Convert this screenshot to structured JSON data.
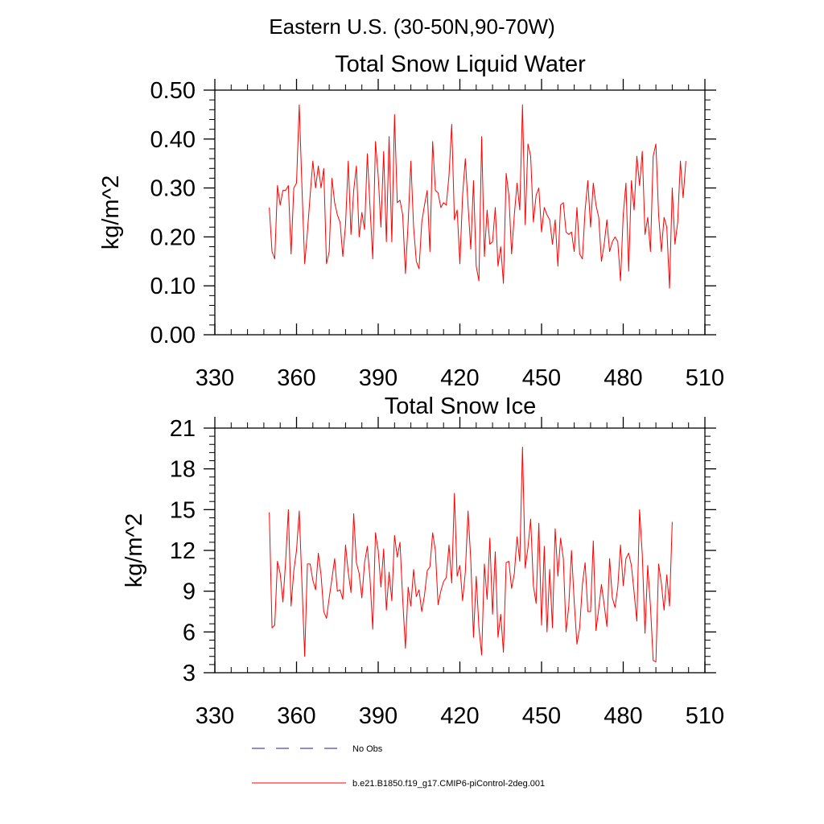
{
  "figure_title": "Eastern U.S. (30-50N,90-70W)",
  "legend": {
    "entries": [
      {
        "label": "No Obs",
        "color": "#1f1f8f",
        "style": "dashed"
      },
      {
        "label": "b.e21.B1850.f19_g17.CMIP6-piControl-2deg.001",
        "color": "#ff0000",
        "style": "solid"
      }
    ]
  },
  "chart_data": [
    {
      "type": "line",
      "title": "Total Snow Liquid Water",
      "xlabel": "",
      "ylabel": "kg/m^2",
      "xlim": [
        330,
        510
      ],
      "ylim": [
        0,
        0.5
      ],
      "xticks": [
        330,
        360,
        390,
        420,
        450,
        480,
        510
      ],
      "xtick_labels": [
        "330",
        "360",
        "390",
        "420",
        "450",
        "480",
        "510"
      ],
      "yticks": [
        0,
        0.1,
        0.2,
        0.3,
        0.4,
        0.5
      ],
      "ytick_labels": [
        "0.00",
        "0.10",
        "0.20",
        "0.30",
        "0.40",
        "0.50"
      ],
      "grid": false,
      "series": [
        {
          "name": "b.e21.B1850.f19_g17.CMIP6-piControl-2deg.001",
          "color": "#ff0000",
          "x_start": 350,
          "x_step": 1,
          "values": [
            0.26,
            0.17,
            0.155,
            0.305,
            0.265,
            0.295,
            0.295,
            0.305,
            0.165,
            0.3,
            0.31,
            0.47,
            0.3,
            0.145,
            0.21,
            0.285,
            0.355,
            0.3,
            0.345,
            0.3,
            0.34,
            0.145,
            0.17,
            0.32,
            0.27,
            0.245,
            0.23,
            0.16,
            0.225,
            0.355,
            0.205,
            0.295,
            0.345,
            0.2,
            0.25,
            0.215,
            0.37,
            0.26,
            0.155,
            0.395,
            0.325,
            0.22,
            0.375,
            0.19,
            0.405,
            0.19,
            0.45,
            0.27,
            0.275,
            0.245,
            0.125,
            0.23,
            0.355,
            0.22,
            0.15,
            0.135,
            0.23,
            0.265,
            0.295,
            0.17,
            0.395,
            0.295,
            0.29,
            0.26,
            0.27,
            0.265,
            0.325,
            0.43,
            0.235,
            0.255,
            0.145,
            0.285,
            0.36,
            0.265,
            0.175,
            0.315,
            0.14,
            0.11,
            0.405,
            0.16,
            0.255,
            0.185,
            0.19,
            0.26,
            0.14,
            0.18,
            0.105,
            0.33,
            0.285,
            0.165,
            0.245,
            0.31,
            0.255,
            0.47,
            0.225,
            0.39,
            0.365,
            0.23,
            0.285,
            0.3,
            0.21,
            0.26,
            0.245,
            0.235,
            0.185,
            0.235,
            0.14,
            0.265,
            0.27,
            0.21,
            0.205,
            0.21,
            0.17,
            0.26,
            0.165,
            0.155,
            0.255,
            0.315,
            0.22,
            0.31,
            0.265,
            0.24,
            0.15,
            0.185,
            0.235,
            0.17,
            0.19,
            0.2,
            0.19,
            0.11,
            0.245,
            0.31,
            0.13,
            0.315,
            0.255,
            0.365,
            0.305,
            0.375,
            0.205,
            0.24,
            0.17,
            0.365,
            0.39,
            0.245,
            0.17,
            0.24,
            0.22,
            0.095,
            0.3,
            0.185,
            0.23,
            0.355,
            0.28,
            0.355
          ]
        }
      ]
    },
    {
      "type": "line",
      "title": "Total Snow Ice",
      "xlabel": "",
      "ylabel": "kg/m^2",
      "xlim": [
        330,
        510
      ],
      "ylim": [
        3,
        21
      ],
      "xticks": [
        330,
        360,
        390,
        420,
        450,
        480,
        510
      ],
      "xtick_labels": [
        "330",
        "360",
        "390",
        "420",
        "450",
        "480",
        "510"
      ],
      "yticks": [
        3,
        6,
        9,
        12,
        15,
        18,
        21
      ],
      "ytick_labels": [
        "3",
        "6",
        "9",
        "12",
        "15",
        "18",
        "21"
      ],
      "grid": false,
      "series": [
        {
          "name": "b.e21.B1850.f19_g17.CMIP6-piControl-2deg.001",
          "color": "#ff0000",
          "x_start": 350,
          "x_step": 1,
          "values": [
            14.8,
            6.3,
            6.5,
            11.2,
            10.3,
            8.2,
            11.2,
            15.0,
            7.9,
            10.5,
            12.0,
            14.9,
            9.5,
            4.2,
            11.0,
            11.0,
            9.8,
            9.1,
            11.8,
            10.2,
            7.5,
            7.0,
            8.5,
            9.9,
            11.4,
            9.0,
            9.1,
            8.4,
            12.4,
            10.4,
            8.9,
            14.7,
            11.1,
            10.3,
            8.5,
            11.1,
            12.3,
            9.9,
            6.2,
            13.3,
            12.0,
            9.3,
            12.1,
            7.6,
            10.4,
            8.3,
            13.1,
            11.5,
            12.6,
            8.4,
            4.8,
            9.3,
            7.9,
            10.6,
            8.6,
            9.1,
            7.5,
            8.7,
            10.5,
            10.8,
            13.3,
            12.0,
            8.0,
            9.0,
            9.7,
            10.0,
            12.4,
            9.6,
            16.2,
            10.1,
            10.9,
            8.3,
            10.4,
            14.9,
            11.3,
            5.6,
            10.1,
            6.3,
            4.3,
            11.0,
            8.4,
            12.9,
            7.3,
            11.9,
            5.6,
            7.3,
            4.5,
            11.1,
            11.2,
            9.2,
            10.3,
            13.0,
            11.2,
            19.6,
            10.7,
            12.2,
            14.3,
            9.4,
            8.1,
            14.0,
            6.5,
            12.3,
            6.0,
            10.6,
            6.3,
            13.6,
            10.1,
            12.9,
            11.4,
            6.0,
            7.9,
            12.0,
            8.2,
            5.1,
            6.3,
            9.5,
            11.1,
            7.5,
            7.5,
            12.7,
            6.1,
            7.7,
            9.5,
            8.0,
            6.4,
            11.4,
            8.5,
            7.8,
            9.3,
            12.4,
            9.4,
            11.4,
            11.8,
            10.9,
            8.9,
            6.8,
            15.0,
            11.7,
            5.9,
            10.9,
            7.9,
            3.9,
            3.8,
            11.0,
            9.6,
            7.6,
            10.2,
            7.9,
            14.1
          ]
        }
      ]
    }
  ]
}
